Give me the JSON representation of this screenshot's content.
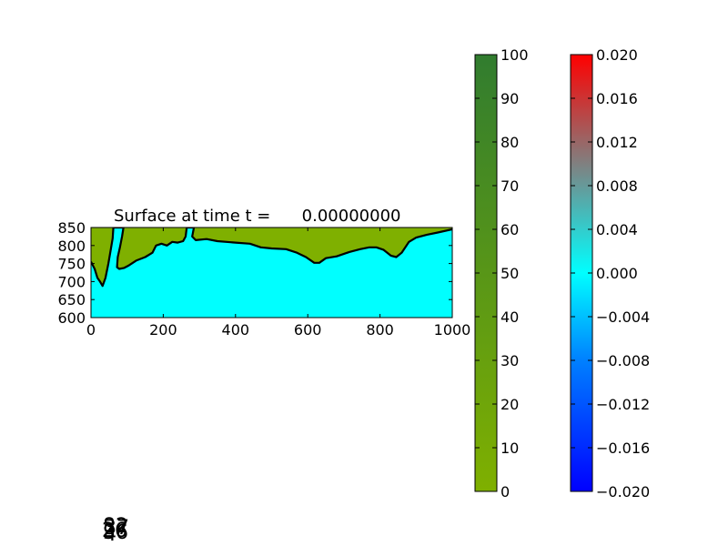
{
  "chart_data": [
    {
      "type": "map",
      "title": "Surface at time t =      0.00000000",
      "xlim": [
        0,
        1000
      ],
      "ylim": [
        600,
        850
      ],
      "x_ticks": [
        "0",
        "200",
        "400",
        "600",
        "800",
        "1000"
      ],
      "y_ticks": [
        "600",
        "650",
        "700",
        "750",
        "800",
        "850"
      ],
      "colors": {
        "land": "#7fb000",
        "water": "#00ffff",
        "shoreline": "#000000"
      },
      "shoreline": [
        [
          0,
          755
        ],
        [
          10,
          735
        ],
        [
          18,
          710
        ],
        [
          25,
          700
        ],
        [
          32,
          688
        ],
        [
          40,
          710
        ],
        [
          48,
          750
        ],
        [
          55,
          790
        ],
        [
          60,
          820
        ],
        [
          62,
          850
        ],
        [
          90,
          850
        ],
        [
          86,
          825
        ],
        [
          80,
          795
        ],
        [
          74,
          768
        ],
        [
          72,
          740
        ],
        [
          78,
          735
        ],
        [
          92,
          738
        ],
        [
          105,
          745
        ],
        [
          125,
          758
        ],
        [
          150,
          768
        ],
        [
          170,
          780
        ],
        [
          180,
          800
        ],
        [
          195,
          805
        ],
        [
          210,
          800
        ],
        [
          225,
          810
        ],
        [
          240,
          808
        ],
        [
          255,
          812
        ],
        [
          262,
          825
        ],
        [
          265,
          850
        ],
        [
          285,
          850
        ],
        [
          280,
          825
        ],
        [
          290,
          815
        ],
        [
          320,
          818
        ],
        [
          350,
          812
        ],
        [
          400,
          808
        ],
        [
          440,
          805
        ],
        [
          470,
          795
        ],
        [
          500,
          792
        ],
        [
          540,
          790
        ],
        [
          570,
          780
        ],
        [
          595,
          768
        ],
        [
          618,
          752
        ],
        [
          632,
          752
        ],
        [
          650,
          765
        ],
        [
          680,
          770
        ],
        [
          715,
          782
        ],
        [
          745,
          790
        ],
        [
          770,
          795
        ],
        [
          790,
          795
        ],
        [
          810,
          788
        ],
        [
          830,
          772
        ],
        [
          845,
          768
        ],
        [
          860,
          780
        ],
        [
          880,
          810
        ],
        [
          900,
          822
        ],
        [
          930,
          830
        ],
        [
          960,
          836
        ],
        [
          1000,
          845
        ]
      ],
      "land_fill": [
        [
          0,
          850
        ],
        [
          0,
          755
        ],
        [
          10,
          735
        ],
        [
          18,
          710
        ],
        [
          25,
          700
        ],
        [
          32,
          688
        ],
        [
          40,
          710
        ],
        [
          48,
          750
        ],
        [
          55,
          790
        ],
        [
          60,
          820
        ],
        [
          62,
          850
        ],
        [
          90,
          850
        ],
        [
          86,
          825
        ],
        [
          80,
          795
        ],
        [
          74,
          768
        ],
        [
          72,
          740
        ],
        [
          78,
          735
        ],
        [
          92,
          738
        ],
        [
          105,
          745
        ],
        [
          125,
          758
        ],
        [
          150,
          768
        ],
        [
          170,
          780
        ],
        [
          180,
          800
        ],
        [
          195,
          805
        ],
        [
          210,
          800
        ],
        [
          225,
          810
        ],
        [
          240,
          808
        ],
        [
          255,
          812
        ],
        [
          262,
          825
        ],
        [
          265,
          850
        ],
        [
          285,
          850
        ],
        [
          280,
          825
        ],
        [
          290,
          815
        ],
        [
          320,
          818
        ],
        [
          350,
          812
        ],
        [
          400,
          808
        ],
        [
          440,
          805
        ],
        [
          470,
          795
        ],
        [
          500,
          792
        ],
        [
          540,
          790
        ],
        [
          570,
          780
        ],
        [
          595,
          768
        ],
        [
          618,
          752
        ],
        [
          632,
          752
        ],
        [
          650,
          765
        ],
        [
          680,
          770
        ],
        [
          715,
          782
        ],
        [
          745,
          790
        ],
        [
          770,
          795
        ],
        [
          790,
          795
        ],
        [
          810,
          788
        ],
        [
          830,
          772
        ],
        [
          845,
          768
        ],
        [
          860,
          780
        ],
        [
          880,
          810
        ],
        [
          900,
          822
        ],
        [
          930,
          830
        ],
        [
          960,
          836
        ],
        [
          1000,
          845
        ],
        [
          1000,
          850
        ]
      ]
    },
    {
      "type": "colorbar",
      "range": [
        0,
        100
      ],
      "ticks": [
        "0",
        "10",
        "20",
        "30",
        "40",
        "50",
        "60",
        "70",
        "80",
        "90",
        "100"
      ],
      "color_stops": [
        "#7fb000",
        "#317c2f"
      ]
    },
    {
      "type": "colorbar",
      "range": [
        -0.02,
        0.02
      ],
      "ticks": [
        "−0.020",
        "−0.016",
        "−0.012",
        "−0.008",
        "−0.004",
        "0.000",
        "0.004",
        "0.008",
        "0.012",
        "0.016",
        "0.020"
      ],
      "color_stops": [
        "#0000ff",
        "#0080ff",
        "#00ffff",
        "#808080",
        "#ff0000"
      ]
    }
  ],
  "overlapping_labels": [
    "82",
    "37",
    "26",
    "36",
    "4"
  ]
}
